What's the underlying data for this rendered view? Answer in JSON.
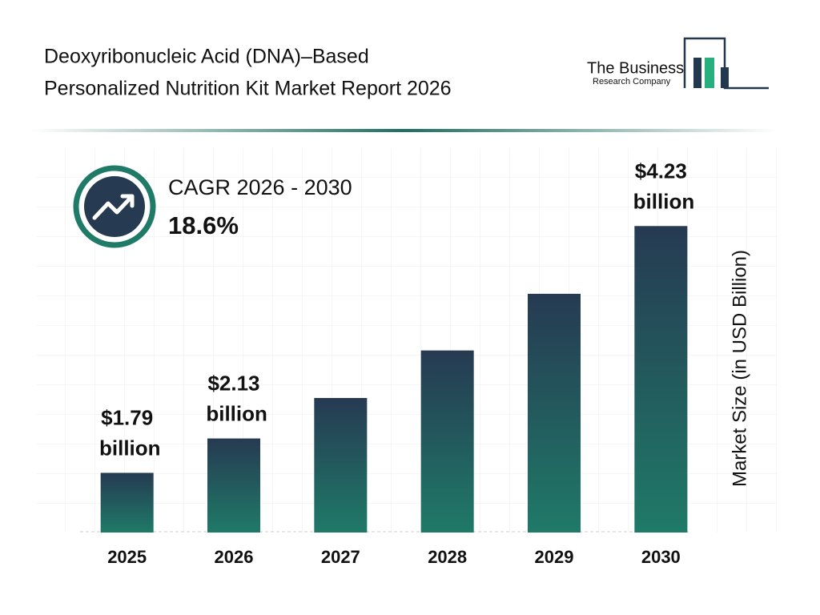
{
  "logo": {
    "name": "The Business",
    "subname": "Research Company"
  },
  "chart_data": {
    "type": "bar",
    "title": [
      "Deoxyribonucleic Acid (DNA)–Based",
      "Personalized Nutrition Kit Market Report 2026"
    ],
    "cagr_label": "CAGR 2026 - 2030",
    "cagr_value": "18.6%",
    "y_label": "Market Size (in USD Billion)",
    "categories": [
      "2025",
      "2026",
      "2027",
      "2028",
      "2029",
      "2030"
    ],
    "values": [
      1.79,
      2.13,
      2.53,
      3.0,
      3.56,
      4.23
    ],
    "value_labels": [
      "$1.79 billion",
      "$2.13 billion",
      null,
      null,
      null,
      "$4.23 billion"
    ],
    "color": "#1f7a68",
    "ylim": [
      1.2,
      5
    ]
  }
}
